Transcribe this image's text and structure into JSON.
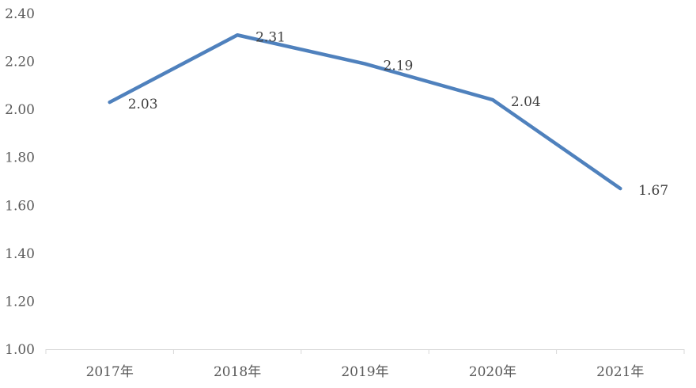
{
  "chart_data": {
    "type": "line",
    "categories": [
      "2017年",
      "2018年",
      "2019年",
      "2020年",
      "2021年"
    ],
    "series": [
      {
        "values": [
          2.03,
          2.31,
          2.19,
          2.04,
          1.67
        ],
        "color": "#4F81BD"
      }
    ],
    "data_labels": [
      "2.03",
      "2.31",
      "2.19",
      "2.04",
      "1.67"
    ],
    "yticks": [
      "1.00",
      "1.20",
      "1.40",
      "1.60",
      "1.80",
      "2.00",
      "2.20",
      "2.40"
    ],
    "ylim": [
      1.0,
      2.4
    ],
    "grid": false,
    "axis_color": "#D9D9D9",
    "title": "",
    "xlabel": "",
    "ylabel": ""
  }
}
